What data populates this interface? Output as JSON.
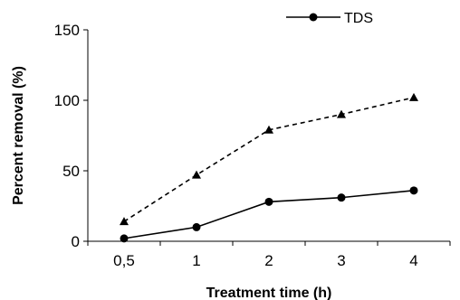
{
  "chart_data": {
    "type": "line",
    "categories": [
      "0,5",
      "1",
      "2",
      "3",
      "4"
    ],
    "series": [
      {
        "name": "TDS",
        "values": [
          2,
          10,
          28,
          31,
          36
        ],
        "line_style": "solid",
        "marker": "circle",
        "color": "#000000"
      },
      {
        "values": [
          14,
          47,
          79,
          90,
          102
        ],
        "line_style": "dashed",
        "marker": "triangle",
        "color": "#000000"
      }
    ],
    "xlabel": "Treatment time (h)",
    "ylabel": "Percent removal (%)",
    "ylim": [
      0,
      150
    ],
    "yticks": [
      0,
      50,
      100,
      150
    ],
    "grid": false,
    "legend_position": "top-right"
  }
}
